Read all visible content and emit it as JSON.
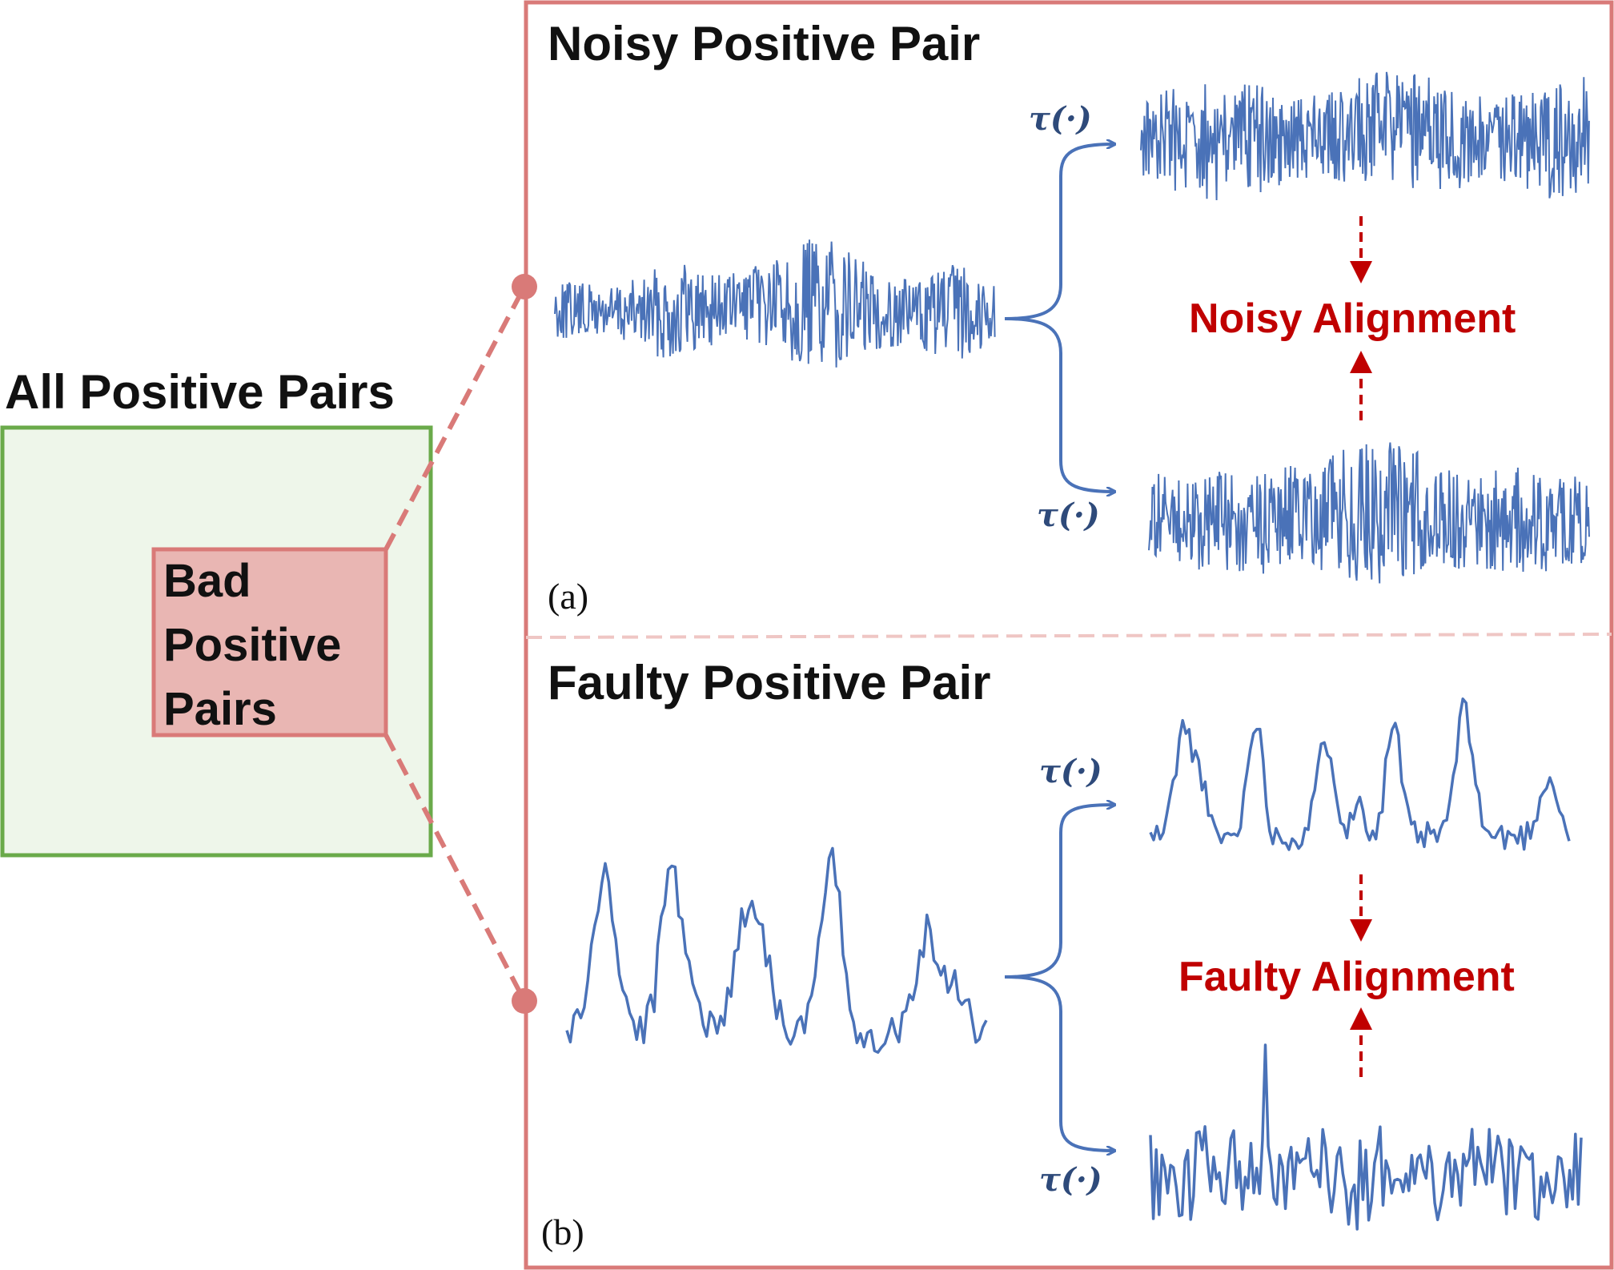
{
  "colors": {
    "green_border": "#6aaa4a",
    "green_fill": "#eef6ea",
    "red_border": "#d97a78",
    "red_fill": "#e9b6b3",
    "signal": "#4a72b8",
    "alignment": "#c00000",
    "tau": "#2e4a7a"
  },
  "left": {
    "title": "All Positive Pairs",
    "bad_box_lines": [
      "Bad",
      "Positive",
      "Pairs"
    ]
  },
  "panels": [
    {
      "heading": "Noisy Positive Pair",
      "letter": "(a)",
      "tau_top": "τ(·)",
      "tau_bottom": "τ(·)",
      "alignment_label": "Noisy Alignment"
    },
    {
      "heading": "Faulty Positive Pair",
      "letter": "(b)",
      "tau_top": "τ(·)",
      "tau_bottom": "τ(·)",
      "alignment_label": "Faulty Alignment"
    }
  ]
}
